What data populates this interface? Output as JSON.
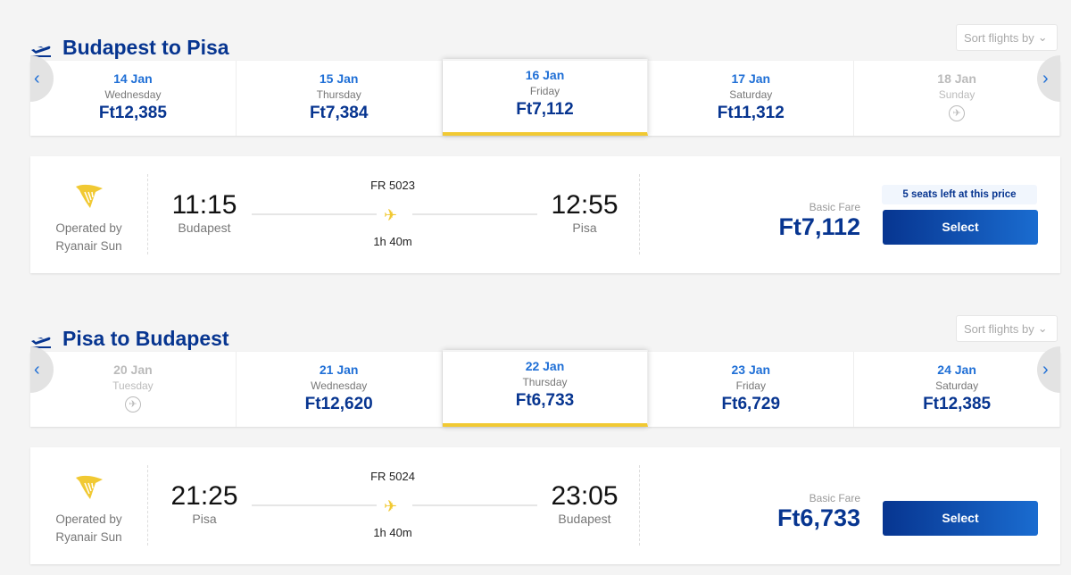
{
  "colors": {
    "brand": "#073590",
    "accent": "#f1c933",
    "date": "#1f6fd6"
  },
  "sections": [
    {
      "title": "Budapest to Pisa",
      "sort_label": "Sort flights by",
      "dates": [
        {
          "date": "14 Jan",
          "day": "Wednesday",
          "price": "Ft12,385"
        },
        {
          "date": "15 Jan",
          "day": "Thursday",
          "price": "Ft7,384"
        },
        {
          "date": "16 Jan",
          "day": "Friday",
          "price": "Ft7,112",
          "selected": true
        },
        {
          "date": "17 Jan",
          "day": "Saturday",
          "price": "Ft11,312"
        },
        {
          "date": "18 Jan",
          "day": "Sunday",
          "price": null,
          "no_flights": true
        }
      ],
      "flight": {
        "operated_by": "Operated by",
        "operator": "Ryanair Sun",
        "dep_time": "11:15",
        "dep_city": "Budapest",
        "flight_no": "FR 5023",
        "duration": "1h 40m",
        "arr_time": "12:55",
        "arr_city": "Pisa",
        "fare_label": "Basic Fare",
        "fare": "Ft7,112",
        "seats_badge": "5 seats left at this price",
        "select_label": "Select"
      }
    },
    {
      "title": "Pisa to Budapest",
      "sort_label": "Sort flights by",
      "dates": [
        {
          "date": "20 Jan",
          "day": "Tuesday",
          "price": null,
          "no_flights": true
        },
        {
          "date": "21 Jan",
          "day": "Wednesday",
          "price": "Ft12,620"
        },
        {
          "date": "22 Jan",
          "day": "Thursday",
          "price": "Ft6,733",
          "selected": true
        },
        {
          "date": "23 Jan",
          "day": "Friday",
          "price": "Ft6,729"
        },
        {
          "date": "24 Jan",
          "day": "Saturday",
          "price": "Ft12,385"
        }
      ],
      "flight": {
        "operated_by": "Operated by",
        "operator": "Ryanair Sun",
        "dep_time": "21:25",
        "dep_city": "Pisa",
        "flight_no": "FR 5024",
        "duration": "1h 40m",
        "arr_time": "23:05",
        "arr_city": "Budapest",
        "fare_label": "Basic Fare",
        "fare": "Ft6,733",
        "select_label": "Select"
      }
    }
  ]
}
